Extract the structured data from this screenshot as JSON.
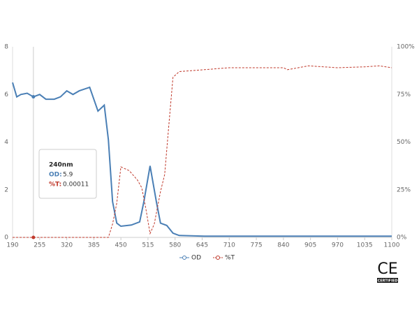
{
  "chart_data": {
    "type": "line",
    "xlim": [
      190,
      1100
    ],
    "xticks": [
      190,
      255,
      320,
      385,
      450,
      515,
      580,
      645,
      710,
      775,
      840,
      905,
      970,
      1035,
      1100
    ],
    "ylim": [
      0,
      8
    ],
    "yticks": [
      0,
      2,
      4,
      6,
      8
    ],
    "y2lim": [
      0,
      100
    ],
    "y2ticks": [
      {
        "value": 0,
        "label": "0%"
      },
      {
        "value": 25,
        "label": "25%"
      },
      {
        "value": 50,
        "label": "50%"
      },
      {
        "value": 75,
        "label": "75%"
      },
      {
        "value": 100,
        "label": "100%"
      }
    ],
    "series": [
      {
        "name": "OD",
        "color": "#4a7fb5",
        "x": [
          190,
          200,
          210,
          225,
          240,
          255,
          270,
          290,
          305,
          320,
          335,
          350,
          375,
          395,
          410,
          420,
          430,
          440,
          450,
          475,
          495,
          505,
          520,
          535,
          545,
          560,
          575,
          590,
          650,
          1100
        ],
        "values": [
          6.5,
          5.9,
          6.0,
          6.05,
          5.9,
          6.0,
          5.8,
          5.8,
          5.9,
          6.15,
          6.0,
          6.15,
          6.3,
          5.3,
          5.55,
          4.1,
          1.5,
          0.6,
          0.47,
          0.52,
          0.65,
          1.5,
          3.0,
          1.5,
          0.6,
          0.5,
          0.18,
          0.08,
          0.05,
          0.05
        ]
      },
      {
        "name": "%T",
        "color": "#c0392b",
        "axis": "y2",
        "dashed": true,
        "x": [
          190,
          240,
          420,
          430,
          440,
          450,
          470,
          490,
          500,
          510,
          520,
          530,
          545,
          555,
          565,
          575,
          590,
          650,
          710,
          840,
          850,
          900,
          970,
          1035,
          1070,
          1100
        ],
        "values": [
          0,
          0,
          0,
          7,
          18,
          37,
          35,
          30,
          26,
          15,
          2,
          7,
          24,
          33,
          59,
          84,
          87,
          88,
          89,
          89,
          88,
          90,
          89,
          89.5,
          90,
          89
        ]
      }
    ],
    "tooltip": {
      "title": "240nm",
      "od_label": "OD:",
      "od": 5.9,
      "t_label": "%T:",
      "t": 0.00011
    },
    "badge": {
      "mark": "CE",
      "text": "CERTIFIED"
    }
  }
}
